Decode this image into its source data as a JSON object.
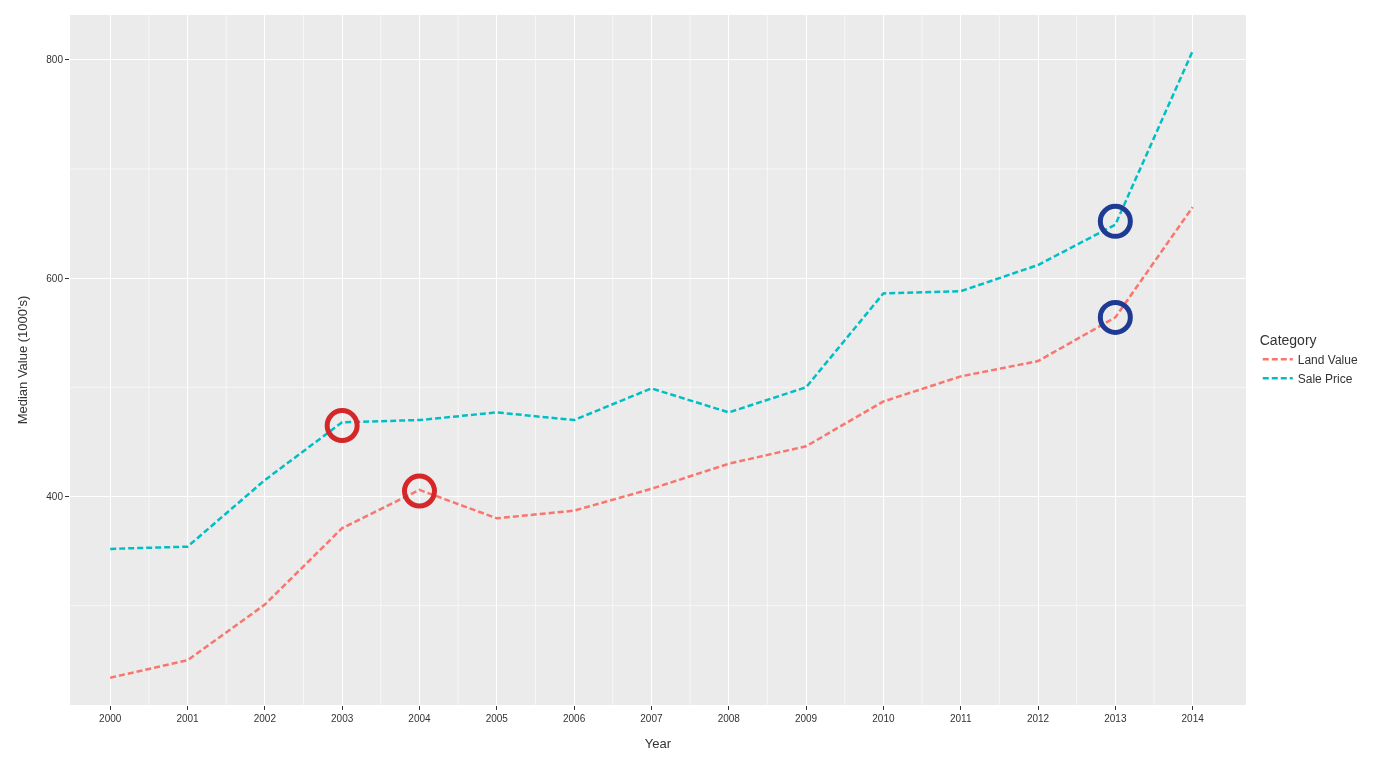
{
  "chart_data": {
    "type": "line",
    "xlabel": "Year",
    "ylabel": "Median Value (1000's)",
    "legend_title": "Category",
    "legend": "right",
    "grid": true,
    "line_style": "dashed",
    "marker": "none",
    "x": [
      2000,
      2001,
      2002,
      2003,
      2004,
      2005,
      2006,
      2007,
      2008,
      2009,
      2010,
      2011,
      2012,
      2013,
      2014
    ],
    "xlim": [
      1999.48,
      2014.69
    ],
    "xticks": [
      2000,
      2001,
      2002,
      2003,
      2004,
      2005,
      2006,
      2007,
      2008,
      2009,
      2010,
      2011,
      2012,
      2013,
      2014
    ],
    "ylim": [
      209,
      841
    ],
    "yticks": [
      400,
      600,
      800
    ],
    "series": [
      {
        "name": "Land Value",
        "color": "#f8766d",
        "values": [
          234,
          250,
          301,
          371,
          406,
          380,
          387,
          407,
          430,
          446,
          487,
          510,
          524,
          564,
          665
        ]
      },
      {
        "name": "Sale Price",
        "color": "#00bfc4",
        "values": [
          352,
          354,
          415,
          468,
          470,
          477,
          470,
          499,
          477,
          500,
          586,
          588,
          612,
          649,
          808
        ]
      },
      {
        "type": "scatter",
        "marker": "circle",
        "color": "#d62728",
        "x": [
          2003,
          2004
        ],
        "values": [
          465,
          405
        ]
      },
      {
        "type": "scatter",
        "marker": "circle",
        "color": "#1f3a93",
        "x": [
          2013,
          2013
        ],
        "values": [
          652,
          564
        ]
      }
    ]
  }
}
